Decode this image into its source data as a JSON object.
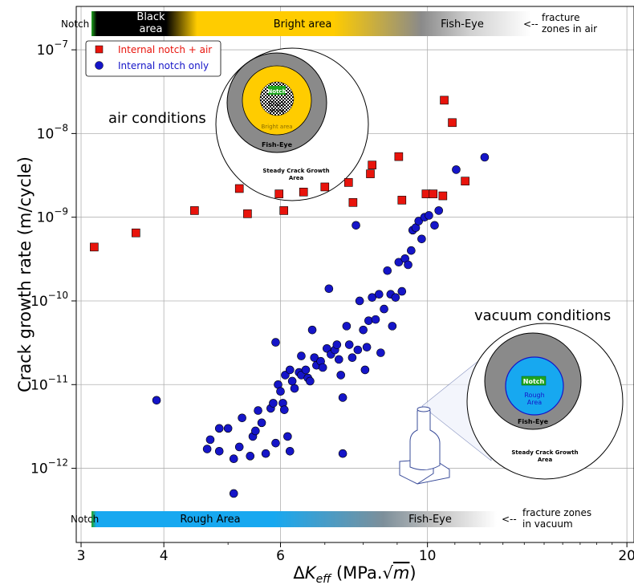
{
  "chart_data": {
    "type": "scatter",
    "title": "",
    "xlabel": "ΔK_eff (MPa.√m)",
    "xlabel_parts": {
      "delta": "Δ",
      "K": "K",
      "sub": "eff",
      "unit_open": " (MPa.√",
      "unit_m": "m",
      "unit_close": ")"
    },
    "ylabel": "Crack growth rate (m/cycle)",
    "x_scale": "log",
    "y_scale": "log",
    "xlim": [
      2.95,
      20.5
    ],
    "ylim": [
      1.3e-13,
      3.3e-07
    ],
    "grid": true,
    "x_ticks": [
      {
        "value": 3,
        "label": "3"
      },
      {
        "value": 4,
        "label": "4"
      },
      {
        "value": 6,
        "label": "6"
      },
      {
        "value": 10,
        "label": "10"
      },
      {
        "value": 20,
        "label": "20"
      }
    ],
    "y_ticks": [
      {
        "value": 1e-12,
        "mant": "10",
        "exp": "−12"
      },
      {
        "value": 1e-11,
        "mant": "10",
        "exp": "−11"
      },
      {
        "value": 1e-10,
        "mant": "10",
        "exp": "−10"
      },
      {
        "value": 1e-09,
        "mant": "10",
        "exp": "−9"
      },
      {
        "value": 1e-08,
        "mant": "10",
        "exp": "−8"
      },
      {
        "value": 1e-07,
        "mant": "10",
        "exp": "−7"
      }
    ],
    "legend_position": "top-left",
    "series": [
      {
        "name": "Internal notch + air",
        "marker": "square",
        "color": "#e8140c",
        "text_color": "#e8140c",
        "points": [
          [
            3.14,
            4.4e-10
          ],
          [
            3.63,
            6.5e-10
          ],
          [
            4.45,
            1.2e-09
          ],
          [
            5.2,
            2.2e-09
          ],
          [
            5.35,
            1.1e-09
          ],
          [
            5.97,
            1.9e-09
          ],
          [
            6.07,
            1.2e-09
          ],
          [
            6.5,
            2e-09
          ],
          [
            7.0,
            2.3e-09
          ],
          [
            7.6,
            2.6e-09
          ],
          [
            7.72,
            1.5e-09
          ],
          [
            8.2,
            3.3e-09
          ],
          [
            8.25,
            4.2e-09
          ],
          [
            9.05,
            5.3e-09
          ],
          [
            9.15,
            1.6e-09
          ],
          [
            9.95,
            1.9e-09
          ],
          [
            10.2,
            1.9e-09
          ],
          [
            10.55,
            1.8e-09
          ],
          [
            10.6,
            2.5e-08
          ],
          [
            10.9,
            1.35e-08
          ],
          [
            11.4,
            2.7e-09
          ]
        ]
      },
      {
        "name": "Internal notch only",
        "marker": "circle",
        "color": "#1515c8",
        "text_color": "#1515c8",
        "points": [
          [
            3.9,
            6.5e-12
          ],
          [
            4.65,
            1.7e-12
          ],
          [
            4.7,
            2.2e-12
          ],
          [
            4.85,
            3e-12
          ],
          [
            4.85,
            1.6e-12
          ],
          [
            5.0,
            3e-12
          ],
          [
            5.1,
            1.3e-12
          ],
          [
            5.1,
            5e-13
          ],
          [
            5.2,
            1.8e-12
          ],
          [
            5.25,
            4e-12
          ],
          [
            5.4,
            1.4e-12
          ],
          [
            5.45,
            2.4e-12
          ],
          [
            5.55,
            4.9e-12
          ],
          [
            5.62,
            3.5e-12
          ],
          [
            5.7,
            1.5e-12
          ],
          [
            5.8,
            5.2e-12
          ],
          [
            5.85,
            6e-12
          ],
          [
            5.9,
            3.2e-11
          ],
          [
            5.9,
            2e-12
          ],
          [
            5.95,
            1e-11
          ],
          [
            6.0,
            8.3e-12
          ],
          [
            6.05,
            6e-12
          ],
          [
            6.08,
            5e-12
          ],
          [
            6.1,
            1.3e-11
          ],
          [
            6.15,
            2.4e-12
          ],
          [
            6.2,
            1.6e-12
          ],
          [
            6.25,
            1.1e-11
          ],
          [
            6.3,
            9e-12
          ],
          [
            6.4,
            1.4e-11
          ],
          [
            6.45,
            1.3e-11
          ],
          [
            6.55,
            1.5e-11
          ],
          [
            6.6,
            1.2e-11
          ],
          [
            6.65,
            1.1e-11
          ],
          [
            6.7,
            4.5e-11
          ],
          [
            6.75,
            2.1e-11
          ],
          [
            6.8,
            1.7e-11
          ],
          [
            6.9,
            1.9e-11
          ],
          [
            6.95,
            1.6e-11
          ],
          [
            7.05,
            2.7e-11
          ],
          [
            7.1,
            1.4e-10
          ],
          [
            7.15,
            2.3e-11
          ],
          [
            7.25,
            2.6e-11
          ],
          [
            7.3,
            3e-11
          ],
          [
            7.35,
            2e-11
          ],
          [
            7.4,
            1.3e-11
          ],
          [
            7.45,
            7e-12
          ],
          [
            7.55,
            5e-11
          ],
          [
            7.62,
            3e-11
          ],
          [
            7.7,
            2.1e-11
          ],
          [
            7.8,
            8e-10
          ],
          [
            7.85,
            2.6e-11
          ],
          [
            7.9,
            1e-10
          ],
          [
            8.0,
            4.5e-11
          ],
          [
            8.05,
            1.5e-11
          ],
          [
            8.1,
            2.8e-11
          ],
          [
            8.15,
            5.8e-11
          ],
          [
            8.25,
            1.1e-10
          ],
          [
            8.35,
            6e-11
          ],
          [
            8.45,
            1.2e-10
          ],
          [
            8.5,
            2.4e-11
          ],
          [
            8.6,
            8e-11
          ],
          [
            8.7,
            2.3e-10
          ],
          [
            8.8,
            1.2e-10
          ],
          [
            8.85,
            5e-11
          ],
          [
            8.95,
            1.1e-10
          ],
          [
            9.05,
            2.9e-10
          ],
          [
            9.15,
            1.3e-10
          ],
          [
            9.25,
            3.2e-10
          ],
          [
            9.35,
            2.7e-10
          ],
          [
            9.45,
            4e-10
          ],
          [
            9.5,
            7e-10
          ],
          [
            9.6,
            7.5e-10
          ],
          [
            9.7,
            9e-10
          ],
          [
            9.8,
            5.5e-10
          ],
          [
            9.9,
            1e-09
          ],
          [
            10.05,
            1.05e-09
          ],
          [
            10.25,
            8e-10
          ],
          [
            10.4,
            1.2e-09
          ],
          [
            11.05,
            3.7e-09
          ],
          [
            12.2,
            5.2e-09
          ],
          [
            7.45,
            1.5e-12
          ],
          [
            6.45,
            2.2e-11
          ],
          [
            6.2,
            1.5e-11
          ],
          [
            5.5,
            2.8e-12
          ]
        ]
      }
    ],
    "annotations": {
      "air_conditions": "air conditions",
      "vacuum_conditions": "vacuum conditions",
      "air_diagram": {
        "notch": "Notch",
        "black_area": "Black\narea",
        "bright_area": "Bright area",
        "fish_eye": "Fish-Eye",
        "steady": "Steady Crack Growth\nArea"
      },
      "vacuum_diagram": {
        "notch": "Notch",
        "rough_area": "Rough\nArea",
        "fish_eye": "Fish-Eye",
        "steady": "Steady Crack Growth\nArea"
      },
      "top_band": {
        "notch": "Notch",
        "black_area": "Black\narea",
        "bright_area": "Bright area",
        "fish_eye": "Fish-Eye",
        "arrow": "<--",
        "note": "fracture\nzones in air"
      },
      "bottom_band": {
        "notch": "Notch",
        "rough_area": "Rough Area",
        "fish_eye": "Fish-Eye",
        "arrow": "<--",
        "note": "fracture zones\nin vacuum"
      }
    },
    "colors": {
      "notch_green": "#1fa51f",
      "black_area": "#000000",
      "bright_yellow": "#ffcc00",
      "fish_eye_gray": "#8a8a8a",
      "rough_blue": "#17a8f0",
      "grid": "#b0b0b0"
    }
  }
}
